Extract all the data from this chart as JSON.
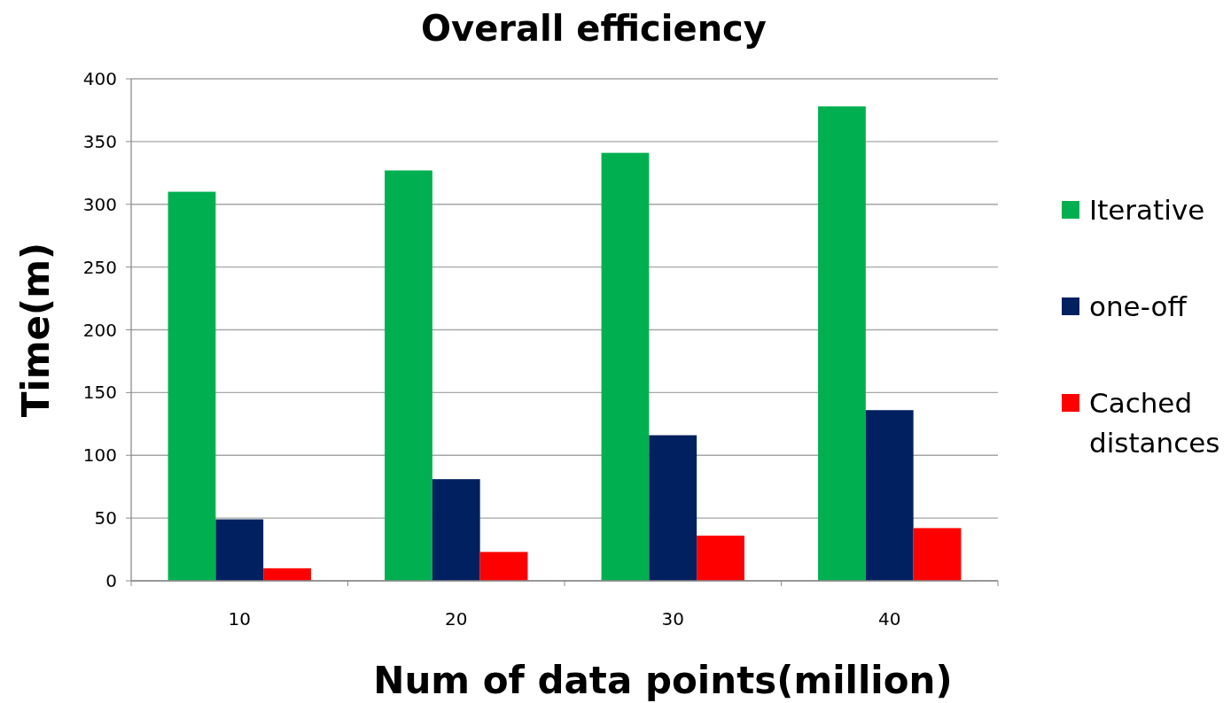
{
  "chart_data": {
    "type": "bar",
    "title": "Overall efficiency",
    "xlabel": "Num of data points(million)",
    "ylabel": "Time(m)",
    "categories": [
      "10",
      "20",
      "30",
      "40"
    ],
    "series": [
      {
        "name": "Iterative",
        "color": "#00b050",
        "values": [
          310,
          327,
          341,
          378
        ]
      },
      {
        "name": "one-off",
        "color": "#002060",
        "values": [
          49,
          81,
          116,
          136
        ]
      },
      {
        "name": "Cached distances",
        "color": "#ff0000",
        "values": [
          10,
          23,
          36,
          42
        ]
      }
    ],
    "ylim": [
      0,
      400
    ],
    "yticks": [
      0,
      50,
      100,
      150,
      200,
      250,
      300,
      350,
      400
    ],
    "grid": "y",
    "legend": "right"
  }
}
